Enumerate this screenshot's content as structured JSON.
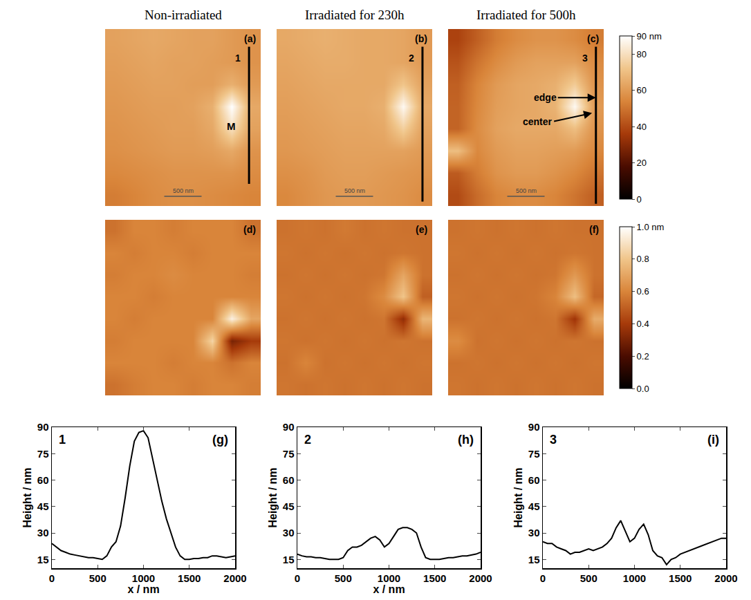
{
  "column_titles": [
    "Non-irradiated",
    "Irradiated for 230h",
    "Irradiated for 500h"
  ],
  "chart_data": [
    {
      "type": "heatmap",
      "panel": "(a)",
      "profile_label": "1",
      "feature_labels": [
        "M"
      ],
      "scale_bar": "500 nm",
      "tick_labels": false,
      "zlim": [
        0,
        90
      ],
      "colorbar": {
        "ticks": [
          0,
          20,
          40,
          60,
          80,
          {
            "value": 90,
            "label": "90 nm"
          }
        ]
      },
      "z": [
        [
          62,
          63,
          64,
          63,
          62,
          62,
          60,
          58
        ],
        [
          61,
          62,
          63,
          62,
          62,
          61,
          60,
          58
        ],
        [
          60,
          61,
          62,
          62,
          61,
          61,
          66,
          60
        ],
        [
          59,
          60,
          61,
          61,
          62,
          66,
          90,
          64
        ],
        [
          58,
          59,
          60,
          61,
          61,
          64,
          80,
          62
        ],
        [
          57,
          58,
          59,
          60,
          60,
          61,
          64,
          58
        ],
        [
          55,
          56,
          57,
          58,
          58,
          58,
          58,
          56
        ],
        [
          52,
          54,
          56,
          57,
          57,
          56,
          55,
          54
        ]
      ]
    },
    {
      "type": "heatmap",
      "panel": "(b)",
      "profile_label": "2",
      "feature_labels": [],
      "scale_bar": "500 nm",
      "tick_labels": false,
      "zlim": [
        0,
        90
      ],
      "z": [
        [
          64,
          65,
          66,
          65,
          64,
          64,
          63,
          60
        ],
        [
          63,
          64,
          65,
          65,
          64,
          64,
          63,
          60
        ],
        [
          62,
          63,
          64,
          64,
          64,
          64,
          72,
          62
        ],
        [
          61,
          62,
          63,
          64,
          64,
          66,
          88,
          64
        ],
        [
          60,
          61,
          62,
          63,
          63,
          64,
          75,
          62
        ],
        [
          59,
          60,
          61,
          62,
          62,
          62,
          62,
          60
        ],
        [
          57,
          58,
          60,
          61,
          61,
          60,
          59,
          58
        ],
        [
          55,
          57,
          59,
          60,
          60,
          59,
          58,
          56
        ]
      ]
    },
    {
      "type": "heatmap",
      "panel": "(c)",
      "profile_label": "3",
      "feature_labels": [
        "edge",
        "center"
      ],
      "scale_bar": "500 nm",
      "tick_labels": false,
      "zlim": [
        0,
        90
      ],
      "z": [
        [
          38,
          45,
          52,
          56,
          58,
          58,
          56,
          52
        ],
        [
          42,
          50,
          56,
          60,
          62,
          62,
          62,
          56
        ],
        [
          45,
          54,
          60,
          63,
          64,
          66,
          74,
          58
        ],
        [
          46,
          55,
          61,
          63,
          64,
          67,
          88,
          60
        ],
        [
          46,
          56,
          62,
          64,
          64,
          64,
          70,
          58
        ],
        [
          70,
          55,
          60,
          62,
          62,
          61,
          60,
          55
        ],
        [
          44,
          52,
          58,
          60,
          60,
          58,
          55,
          50
        ],
        [
          40,
          48,
          54,
          56,
          56,
          54,
          50,
          45
        ]
      ]
    },
    {
      "type": "heatmap",
      "panel": "(d)",
      "tick_labels": false,
      "zlim": [
        0,
        1
      ],
      "colorbar": {
        "ticks": [
          {
            "value": 0,
            "label": "0.0"
          },
          {
            "value": 0.2,
            "label": "0.2"
          },
          {
            "value": 0.4,
            "label": "0.4"
          },
          {
            "value": 0.6,
            "label": "0.6"
          },
          {
            "value": 0.8,
            "label": "0.8"
          },
          {
            "value": 1,
            "label": "1.0 nm"
          }
        ]
      },
      "z": [
        [
          0.55,
          0.6,
          0.6,
          0.58,
          0.6,
          0.6,
          0.6,
          0.55
        ],
        [
          0.6,
          0.58,
          0.6,
          0.6,
          0.58,
          0.6,
          0.6,
          0.6
        ],
        [
          0.58,
          0.6,
          0.6,
          0.62,
          0.6,
          0.6,
          0.6,
          0.58
        ],
        [
          0.6,
          0.6,
          0.58,
          0.6,
          0.6,
          0.6,
          0.6,
          0.6
        ],
        [
          0.6,
          0.58,
          0.6,
          0.6,
          0.6,
          0.6,
          0.95,
          0.7
        ],
        [
          0.58,
          0.6,
          0.6,
          0.6,
          0.6,
          0.85,
          0.3,
          0.4
        ],
        [
          0.6,
          0.6,
          0.6,
          0.58,
          0.6,
          0.6,
          0.55,
          0.6
        ],
        [
          0.55,
          0.58,
          0.6,
          0.6,
          0.58,
          0.6,
          0.6,
          0.58
        ]
      ]
    },
    {
      "type": "heatmap",
      "panel": "(e)",
      "tick_labels": false,
      "zlim": [
        0,
        1
      ],
      "z": [
        [
          0.55,
          0.56,
          0.55,
          0.57,
          0.55,
          0.56,
          0.55,
          0.55
        ],
        [
          0.56,
          0.55,
          0.56,
          0.55,
          0.56,
          0.55,
          0.56,
          0.55
        ],
        [
          0.55,
          0.56,
          0.55,
          0.56,
          0.55,
          0.56,
          0.7,
          0.55
        ],
        [
          0.56,
          0.55,
          0.56,
          0.55,
          0.56,
          0.62,
          0.8,
          0.5
        ],
        [
          0.55,
          0.56,
          0.55,
          0.56,
          0.55,
          0.56,
          0.35,
          0.75
        ],
        [
          0.56,
          0.55,
          0.56,
          0.55,
          0.56,
          0.55,
          0.56,
          0.55
        ],
        [
          0.55,
          0.6,
          0.55,
          0.56,
          0.55,
          0.56,
          0.55,
          0.56
        ],
        [
          0.56,
          0.55,
          0.56,
          0.55,
          0.56,
          0.55,
          0.56,
          0.55
        ]
      ]
    },
    {
      "type": "heatmap",
      "panel": "(f)",
      "tick_labels": false,
      "zlim": [
        0,
        1
      ],
      "z": [
        [
          0.55,
          0.56,
          0.55,
          0.56,
          0.55,
          0.56,
          0.55,
          0.55
        ],
        [
          0.56,
          0.55,
          0.56,
          0.55,
          0.56,
          0.55,
          0.56,
          0.55
        ],
        [
          0.55,
          0.56,
          0.55,
          0.56,
          0.55,
          0.56,
          0.66,
          0.55
        ],
        [
          0.56,
          0.55,
          0.56,
          0.55,
          0.56,
          0.6,
          0.78,
          0.52
        ],
        [
          0.55,
          0.56,
          0.55,
          0.56,
          0.55,
          0.56,
          0.38,
          0.72
        ],
        [
          0.62,
          0.55,
          0.56,
          0.55,
          0.56,
          0.55,
          0.56,
          0.55
        ],
        [
          0.55,
          0.56,
          0.55,
          0.56,
          0.55,
          0.56,
          0.55,
          0.56
        ],
        [
          0.56,
          0.55,
          0.56,
          0.55,
          0.56,
          0.55,
          0.56,
          0.55
        ]
      ]
    },
    {
      "type": "line",
      "panel": "(g)",
      "label": "1",
      "color": "#000000",
      "x_label": "x / nm",
      "y_label": "Height / nm",
      "xlim": [
        0,
        2000
      ],
      "xticks": [
        0,
        500,
        1000,
        1500,
        2000
      ],
      "ylim": [
        10,
        90
      ],
      "yticks": [
        15,
        30,
        45,
        60,
        75,
        90
      ],
      "x": [
        0,
        50,
        100,
        150,
        200,
        250,
        300,
        350,
        400,
        450,
        500,
        550,
        600,
        650,
        700,
        750,
        800,
        850,
        900,
        950,
        1000,
        1050,
        1100,
        1150,
        1200,
        1250,
        1300,
        1350,
        1400,
        1450,
        1500,
        1550,
        1600,
        1650,
        1700,
        1750,
        1800,
        1850,
        1900,
        1950,
        2000
      ],
      "values": [
        24,
        22,
        20,
        19,
        18,
        17.5,
        17,
        16.5,
        16,
        16,
        15.5,
        15,
        17,
        22,
        25,
        34,
        50,
        68,
        82,
        87,
        88,
        84,
        72,
        60,
        48,
        38,
        30,
        22,
        17,
        15,
        15,
        15.5,
        15.5,
        16,
        16,
        17,
        17,
        16.5,
        16,
        16.5,
        17
      ]
    },
    {
      "type": "line",
      "panel": "(h)",
      "label": "2",
      "color": "#000000",
      "x_label": "x / nm",
      "y_label": "Height / nm",
      "xlim": [
        0,
        2000
      ],
      "xticks": [
        0,
        500,
        1000,
        1500,
        2000
      ],
      "ylim": [
        10,
        90
      ],
      "yticks": [
        15,
        30,
        45,
        60,
        75,
        90
      ],
      "x": [
        0,
        50,
        100,
        150,
        200,
        250,
        300,
        350,
        400,
        450,
        500,
        550,
        600,
        650,
        700,
        750,
        800,
        850,
        900,
        950,
        1000,
        1050,
        1100,
        1150,
        1200,
        1250,
        1300,
        1350,
        1400,
        1450,
        1500,
        1550,
        1600,
        1650,
        1700,
        1750,
        1800,
        1850,
        1900,
        1950,
        2000
      ],
      "values": [
        18,
        17,
        16.5,
        16.5,
        16,
        16,
        15.5,
        15,
        15,
        15,
        16,
        20,
        22,
        22,
        23,
        25,
        27,
        28,
        26,
        22,
        24,
        28,
        32,
        33,
        33,
        32,
        30,
        22,
        16,
        15,
        15,
        15,
        15.5,
        16,
        16,
        16.5,
        17,
        17,
        17.5,
        18,
        19
      ]
    },
    {
      "type": "line",
      "panel": "(i)",
      "label": "3",
      "color": "#000000",
      "y_label": "Height / nm",
      "xlim": [
        0,
        2000
      ],
      "xticks": [
        0,
        500,
        1000,
        1500,
        2000
      ],
      "ylim": [
        10,
        90
      ],
      "yticks": [
        15,
        30,
        45,
        60,
        75,
        90
      ],
      "x": [
        0,
        50,
        100,
        150,
        200,
        250,
        300,
        350,
        400,
        450,
        500,
        550,
        600,
        650,
        700,
        750,
        800,
        850,
        900,
        950,
        1000,
        1050,
        1100,
        1150,
        1200,
        1250,
        1300,
        1350,
        1400,
        1450,
        1500,
        1550,
        1600,
        1650,
        1700,
        1750,
        1800,
        1850,
        1900,
        1950,
        2000
      ],
      "values": [
        25,
        24,
        24,
        22,
        21,
        20,
        18,
        19,
        19,
        20,
        21,
        20,
        21,
        22,
        24,
        27,
        33,
        37,
        31,
        25,
        27,
        32,
        35,
        29,
        20,
        17,
        16,
        12,
        15,
        16,
        18,
        19,
        20,
        21,
        22,
        23,
        24,
        25,
        26,
        27,
        27
      ]
    }
  ]
}
